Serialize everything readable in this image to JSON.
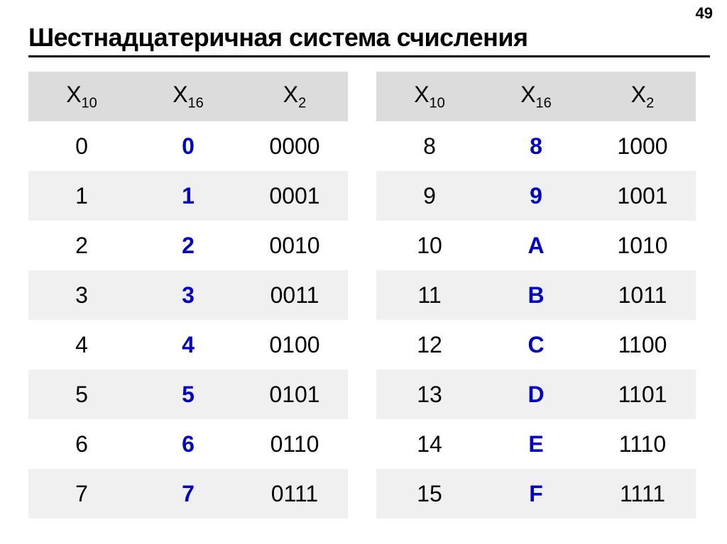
{
  "page_number": "49",
  "title": "Шестнадцатеричная система счисления",
  "header": {
    "base_label": "X",
    "sub10": "10",
    "sub16": "16",
    "sub2": "2"
  },
  "colors": {
    "header_bg": "#dcdcdc",
    "alt_row_bg": "#f0f0f0",
    "hex_color": "#0000cc",
    "text_color": "#000000",
    "underline_color": "#000000",
    "background": "#ffffff"
  },
  "typography": {
    "title_fontsize": 36,
    "cell_fontsize": 32,
    "page_num_fontsize": 22,
    "sub_fontsize": 20
  },
  "left": {
    "rows": [
      {
        "dec": "0",
        "hex": "0",
        "bin": "0000"
      },
      {
        "dec": "1",
        "hex": "1",
        "bin": "0001"
      },
      {
        "dec": "2",
        "hex": "2",
        "bin": "0010"
      },
      {
        "dec": "3",
        "hex": "3",
        "bin": "0011"
      },
      {
        "dec": "4",
        "hex": "4",
        "bin": "0100"
      },
      {
        "dec": "5",
        "hex": "5",
        "bin": "0101"
      },
      {
        "dec": "6",
        "hex": "6",
        "bin": "0110"
      },
      {
        "dec": "7",
        "hex": "7",
        "bin": "0111"
      }
    ]
  },
  "right": {
    "rows": [
      {
        "dec": "8",
        "hex": "8",
        "bin": "1000"
      },
      {
        "dec": "9",
        "hex": "9",
        "bin": "1001"
      },
      {
        "dec": "10",
        "hex": "A",
        "bin": "1010"
      },
      {
        "dec": "11",
        "hex": "B",
        "bin": "1011"
      },
      {
        "dec": "12",
        "hex": "C",
        "bin": "1100"
      },
      {
        "dec": "13",
        "hex": "D",
        "bin": "1101"
      },
      {
        "dec": "14",
        "hex": "E",
        "bin": "1110"
      },
      {
        "dec": "15",
        "hex": "F",
        "bin": "1111"
      }
    ]
  }
}
